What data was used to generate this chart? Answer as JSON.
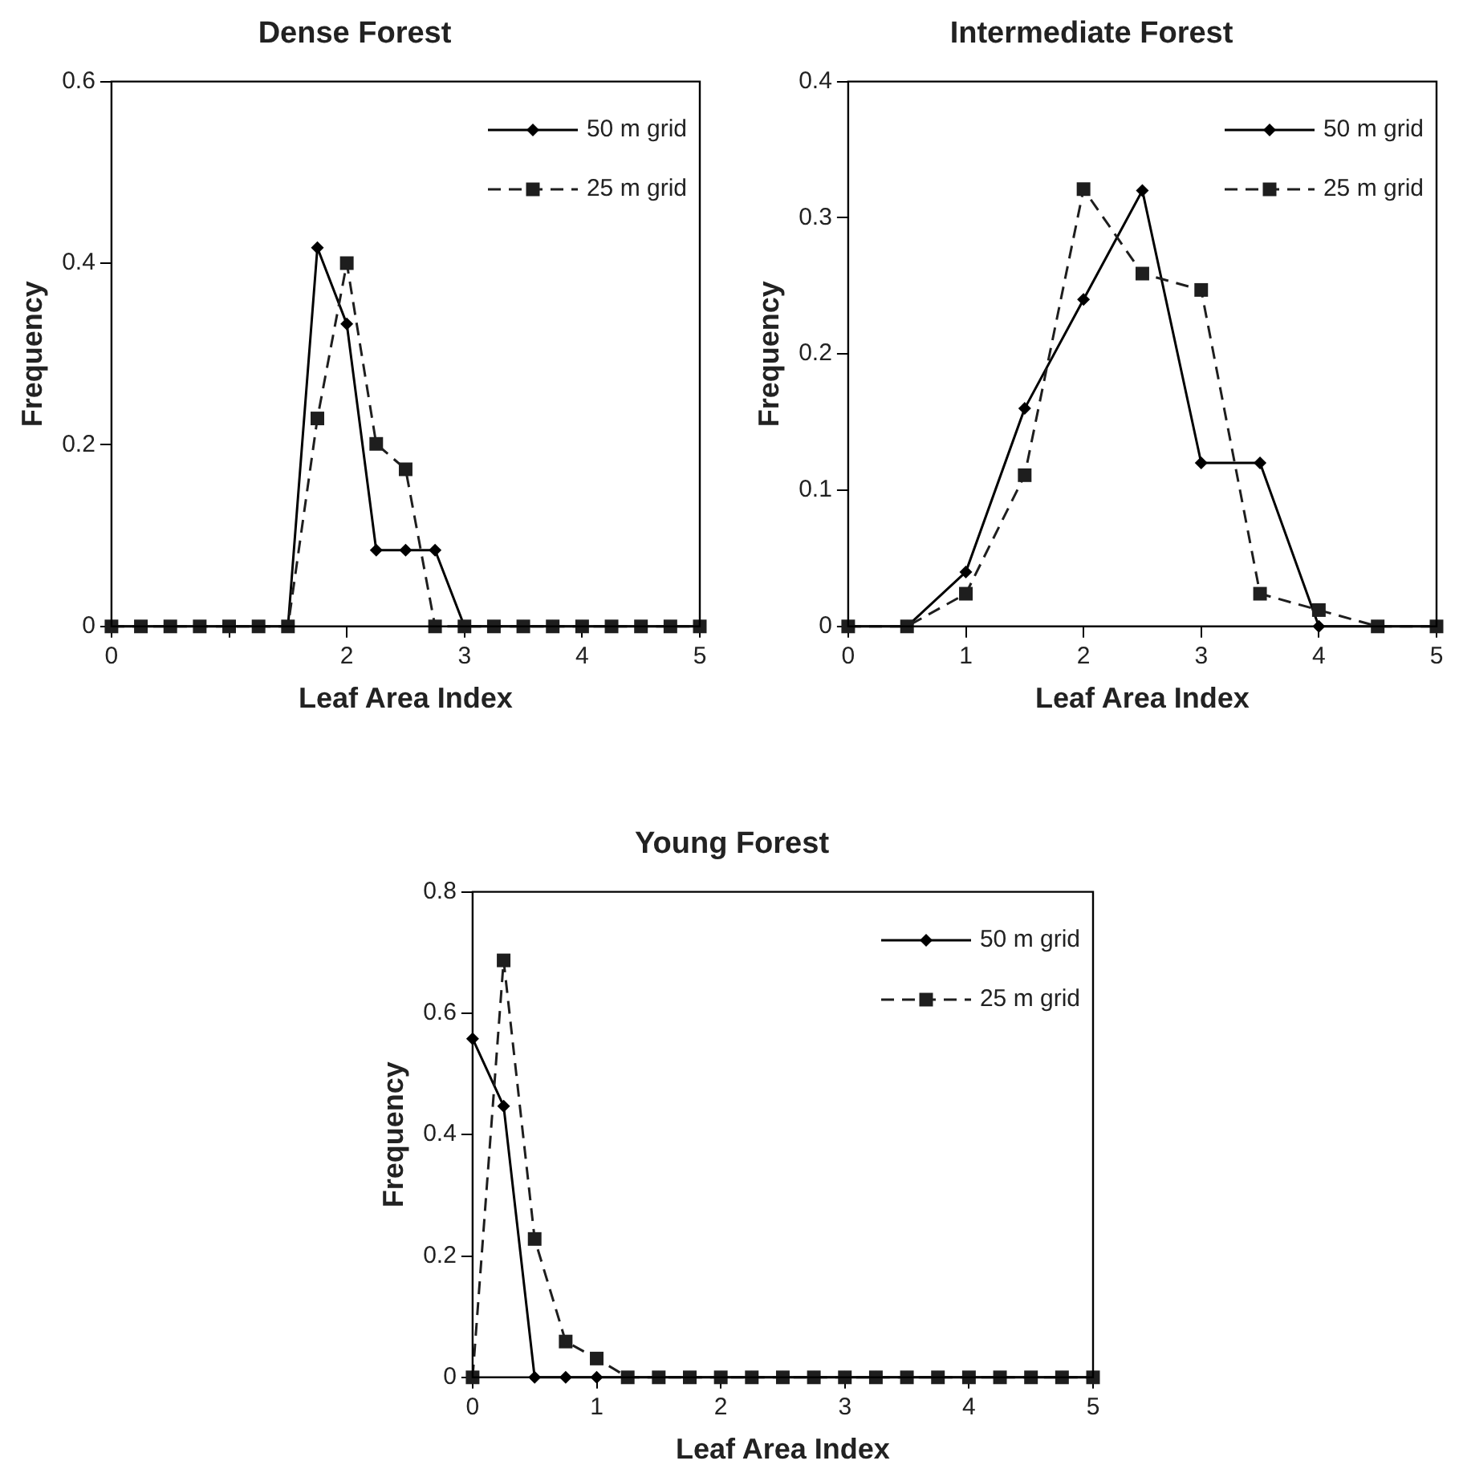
{
  "chart_data": [
    {
      "type": "line",
      "title": "Dense Forest",
      "xlabel": "Leaf Area Index",
      "ylabel": "Frequency",
      "x": [
        0,
        0.25,
        0.5,
        0.75,
        1,
        1.25,
        1.5,
        1.75,
        2,
        2.25,
        2.5,
        2.75,
        3,
        3.25,
        3.5,
        3.75,
        4,
        4.25,
        4.5,
        4.75,
        5
      ],
      "xlim": [
        0,
        5
      ],
      "xticks": [
        0,
        {
          "value": 1,
          "label": null
        },
        2,
        3,
        4,
        5
      ],
      "ylim": [
        0,
        0.6
      ],
      "yticks": [
        0,
        0.2,
        0.4,
        0.6
      ],
      "grid": false,
      "legend": "top right",
      "series": [
        {
          "name": "50 m grid",
          "color": "#000000",
          "marker": "diamond",
          "line_style": "solid",
          "values": [
            0,
            0,
            0,
            0,
            0,
            0,
            0,
            0.417,
            0.333,
            0.084,
            0.084,
            0.084,
            0,
            0,
            0,
            0,
            0,
            0,
            0,
            0,
            0
          ]
        },
        {
          "name": "25 m grid",
          "color": "#1e1e1e",
          "marker": "square",
          "line_style": "dashed",
          "values": [
            0,
            0,
            0,
            0,
            0,
            0,
            0,
            0.229,
            0.4,
            0.201,
            0.173,
            0,
            0,
            0,
            0,
            0,
            0,
            0,
            0,
            0,
            0
          ]
        }
      ]
    },
    {
      "type": "line",
      "title": "Intermediate Forest",
      "xlabel": "Leaf Area Index",
      "ylabel": "Frequency",
      "x": [
        0,
        0.5,
        1,
        1.5,
        2,
        2.5,
        3,
        3.5,
        4,
        4.5,
        5
      ],
      "xlim": [
        0,
        5
      ],
      "xticks": [
        0,
        1,
        2,
        3,
        4,
        5
      ],
      "ylim": [
        0,
        0.4
      ],
      "yticks": [
        0,
        0.1,
        0.2,
        0.3,
        0.4
      ],
      "grid": false,
      "legend": "top right",
      "series": [
        {
          "name": "50 m grid",
          "color": "#000000",
          "marker": "diamond",
          "line_style": "solid",
          "values": [
            0,
            0,
            0.04,
            0.16,
            0.24,
            0.32,
            0.12,
            0.12,
            0,
            0,
            0
          ]
        },
        {
          "name": "25 m grid",
          "color": "#1e1e1e",
          "marker": "square",
          "line_style": "dashed",
          "values": [
            0,
            0,
            0.024,
            0.111,
            0.321,
            0.259,
            0.247,
            0.024,
            0.012,
            0,
            0
          ]
        }
      ]
    },
    {
      "type": "line",
      "title": "Young Forest",
      "xlabel": "Leaf Area Index",
      "ylabel": "Frequency",
      "x": [
        0,
        0.25,
        0.5,
        0.75,
        1,
        1.25,
        1.5,
        1.75,
        2,
        2.25,
        2.5,
        2.75,
        3,
        3.25,
        3.5,
        3.75,
        4,
        4.25,
        4.5,
        4.75,
        5
      ],
      "xlim": [
        0,
        5
      ],
      "xticks": [
        0,
        1,
        2,
        3,
        4,
        5
      ],
      "ylim": [
        0,
        0.8
      ],
      "yticks": [
        0,
        0.2,
        0.4,
        0.6,
        0.8
      ],
      "grid": false,
      "legend": "top right",
      "series": [
        {
          "name": "50 m grid",
          "color": "#000000",
          "marker": "diamond",
          "line_style": "solid",
          "values": [
            0.558,
            0.447,
            0,
            0,
            0,
            0,
            0,
            0,
            0,
            0,
            0,
            0,
            0,
            0,
            0,
            0,
            0,
            0,
            0,
            0,
            0
          ]
        },
        {
          "name": "25 m grid",
          "color": "#1e1e1e",
          "marker": "square",
          "line_style": "dashed",
          "values": [
            0,
            0.687,
            0.228,
            0.059,
            0.031,
            0,
            0,
            0,
            0,
            0,
            0,
            0,
            0,
            0,
            0,
            0,
            0,
            0,
            0,
            0,
            0
          ]
        }
      ]
    }
  ]
}
